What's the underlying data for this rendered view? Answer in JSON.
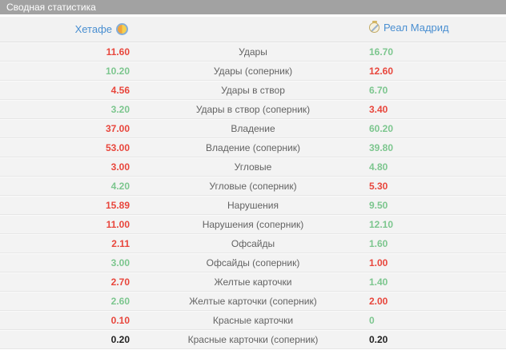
{
  "panel": {
    "title": "Сводная статистика"
  },
  "colors": {
    "red": "#e8463c",
    "green": "#7cc68e",
    "neutral": "#222222",
    "team_link": "#4a8fd1",
    "title_bar_bg": "#a2a2a2",
    "row_bg": "#f3f3f3"
  },
  "teams": {
    "home": {
      "name": "Хетафе",
      "crest": "getafe-crest"
    },
    "away": {
      "name": "Реал Мадрид",
      "crest": "real-madrid-crest"
    }
  },
  "rows": [
    {
      "home_value": "11.60",
      "home_color": "red",
      "stat": "Удары",
      "away_value": "16.70",
      "away_color": "green"
    },
    {
      "home_value": "10.20",
      "home_color": "green",
      "stat": "Удары (соперник)",
      "away_value": "12.60",
      "away_color": "red"
    },
    {
      "home_value": "4.56",
      "home_color": "red",
      "stat": "Удары в створ",
      "away_value": "6.70",
      "away_color": "green"
    },
    {
      "home_value": "3.20",
      "home_color": "green",
      "stat": "Удары в створ (соперник)",
      "away_value": "3.40",
      "away_color": "red"
    },
    {
      "home_value": "37.00",
      "home_color": "red",
      "stat": "Владение",
      "away_value": "60.20",
      "away_color": "green"
    },
    {
      "home_value": "53.00",
      "home_color": "red",
      "stat": "Владение (соперник)",
      "away_value": "39.80",
      "away_color": "green"
    },
    {
      "home_value": "3.00",
      "home_color": "red",
      "stat": "Угловые",
      "away_value": "4.80",
      "away_color": "green"
    },
    {
      "home_value": "4.20",
      "home_color": "green",
      "stat": "Угловые (соперник)",
      "away_value": "5.30",
      "away_color": "red"
    },
    {
      "home_value": "15.89",
      "home_color": "red",
      "stat": "Нарушения",
      "away_value": "9.50",
      "away_color": "green"
    },
    {
      "home_value": "11.00",
      "home_color": "red",
      "stat": "Нарушения (соперник)",
      "away_value": "12.10",
      "away_color": "green"
    },
    {
      "home_value": "2.11",
      "home_color": "red",
      "stat": "Офсайды",
      "away_value": "1.60",
      "away_color": "green"
    },
    {
      "home_value": "3.00",
      "home_color": "green",
      "stat": "Офсайды (соперник)",
      "away_value": "1.00",
      "away_color": "red"
    },
    {
      "home_value": "2.70",
      "home_color": "red",
      "stat": "Желтые карточки",
      "away_value": "1.40",
      "away_color": "green"
    },
    {
      "home_value": "2.60",
      "home_color": "green",
      "stat": "Желтые карточки (соперник)",
      "away_value": "2.00",
      "away_color": "red"
    },
    {
      "home_value": "0.10",
      "home_color": "red",
      "stat": "Красные карточки",
      "away_value": "0",
      "away_color": "green"
    },
    {
      "home_value": "0.20",
      "home_color": "neutral",
      "stat": "Красные карточки (соперник)",
      "away_value": "0.20",
      "away_color": "neutral"
    }
  ]
}
